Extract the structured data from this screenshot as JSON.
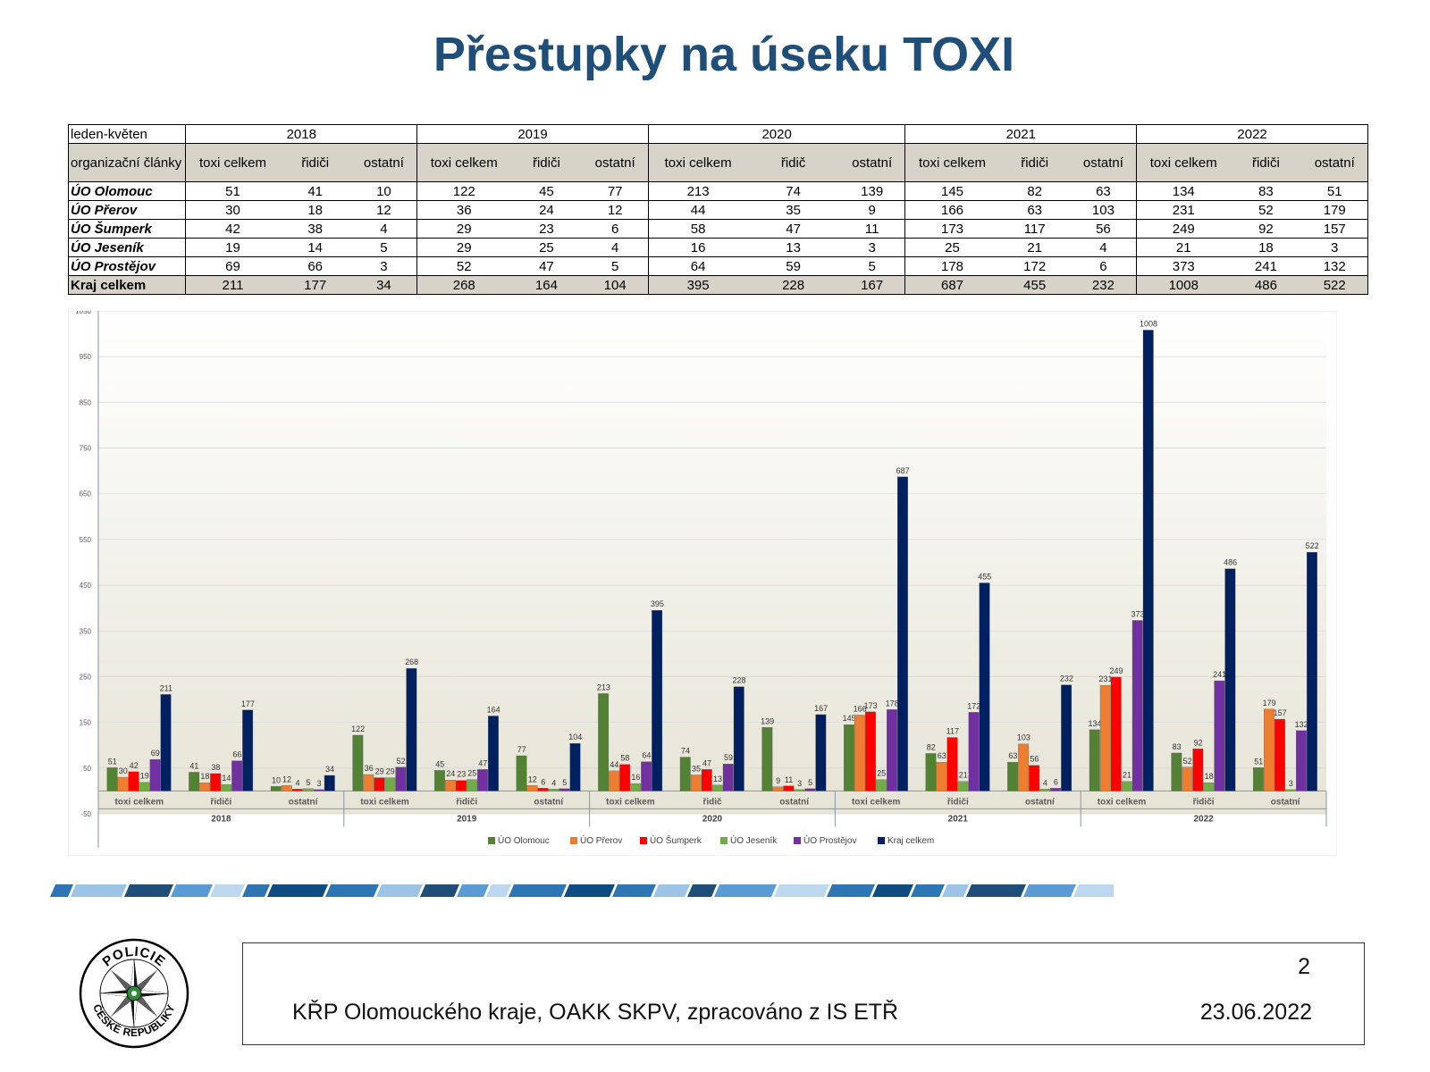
{
  "title": "Přestupky na úseku TOXI",
  "table": {
    "corner": "leden-květen",
    "org_label": "organizační články",
    "years": [
      "2018",
      "2019",
      "2020",
      "2021",
      "2022"
    ],
    "subheaders": [
      [
        "toxi celkem",
        "řidiči",
        "ostatní"
      ],
      [
        "toxi celkem",
        "řidiči",
        "ostatní"
      ],
      [
        "toxi celkem",
        "řidič",
        "ostatní"
      ],
      [
        "toxi celkem",
        "řidiči",
        "ostatní"
      ],
      [
        "toxi celkem",
        "řidiči",
        "ostatní"
      ]
    ],
    "rows": [
      {
        "label": "ÚO Olomouc",
        "cells": [
          "51",
          "41",
          "10",
          "122",
          "45",
          "77",
          "213",
          "74",
          "139",
          "145",
          "82",
          "63",
          "134",
          "83",
          "51"
        ]
      },
      {
        "label": "ÚO Přerov",
        "cells": [
          "30",
          "18",
          "12",
          "36",
          "24",
          "12",
          "44",
          "35",
          "9",
          "166",
          "63",
          "103",
          "231",
          "52",
          "179"
        ]
      },
      {
        "label": "ÚO Šumperk",
        "cells": [
          "42",
          "38",
          "4",
          "29",
          "23",
          "6",
          "58",
          "47",
          "11",
          "173",
          "117",
          "56",
          "249",
          "92",
          "157"
        ]
      },
      {
        "label": "ÚO Jeseník",
        "cells": [
          "19",
          "14",
          "5",
          "29",
          "25",
          "4",
          "16",
          "13",
          "3",
          "25",
          "21",
          "4",
          "21",
          "18",
          "3"
        ]
      },
      {
        "label": "ÚO Prostějov",
        "cells": [
          "69",
          "66",
          "3",
          "52",
          "47",
          "5",
          "64",
          "59",
          "5",
          "178",
          "172",
          "6",
          "373",
          "241",
          "132"
        ]
      }
    ],
    "total": {
      "label": "Kraj celkem",
      "cells": [
        "211",
        "177",
        "34",
        "268",
        "164",
        "104",
        "395",
        "228",
        "167",
        "687",
        "455",
        "232",
        "1008",
        "486",
        "522"
      ]
    }
  },
  "chart_data": {
    "type": "bar",
    "years": [
      "2018",
      "2019",
      "2020",
      "2021",
      "2022"
    ],
    "categories": [
      "toxi celkem",
      "řidiči",
      "ostatní",
      "toxi celkem",
      "řidiči",
      "ostatní",
      "toxi celkem",
      "řidič",
      "ostatní",
      "toxi celkem",
      "řidiči",
      "ostatní",
      "toxi celkem",
      "řidiči",
      "ostatní"
    ],
    "series": [
      {
        "name": "ÚO Olomouc",
        "color": "#548235",
        "values": [
          51,
          41,
          10,
          122,
          45,
          77,
          213,
          74,
          139,
          145,
          82,
          63,
          134,
          83,
          51
        ]
      },
      {
        "name": "ÚO Přerov",
        "color": "#ed7d31",
        "values": [
          30,
          18,
          12,
          36,
          24,
          12,
          44,
          35,
          9,
          166,
          63,
          103,
          231,
          52,
          179
        ]
      },
      {
        "name": "ÚO Šumperk",
        "color": "#ff0000",
        "values": [
          42,
          38,
          4,
          29,
          23,
          6,
          58,
          47,
          11,
          173,
          117,
          56,
          249,
          92,
          157
        ]
      },
      {
        "name": "ÚO Jeseník",
        "color": "#70ad47",
        "values": [
          19,
          14,
          5,
          29,
          25,
          4,
          16,
          13,
          3,
          25,
          21,
          4,
          21,
          18,
          3
        ]
      },
      {
        "name": "ÚO Prostějov",
        "color": "#7030a0",
        "values": [
          69,
          66,
          3,
          52,
          47,
          5,
          64,
          59,
          5,
          178,
          172,
          6,
          373,
          241,
          132
        ]
      },
      {
        "name": "Kraj celkem",
        "color": "#002060",
        "values": [
          211,
          177,
          34,
          268,
          164,
          104,
          395,
          228,
          167,
          687,
          455,
          232,
          1008,
          486,
          522
        ]
      }
    ],
    "ylim": [
      -50,
      1050
    ],
    "yticks": [
      "1050",
      "950",
      "850",
      "750",
      "650",
      "550",
      "450",
      "350",
      "250",
      "150",
      "50",
      "-50"
    ],
    "grid": true,
    "legend": "bottom"
  },
  "footer": {
    "text": "KŘP Olomouckého kraje, OAKK SKPV, zpracováno z IS ETŘ",
    "date": "23.06.2022",
    "page": "2"
  },
  "logo": {
    "text_top": "POLICIE",
    "text_bottom": "ČESKÉ REPUBLIKY"
  }
}
